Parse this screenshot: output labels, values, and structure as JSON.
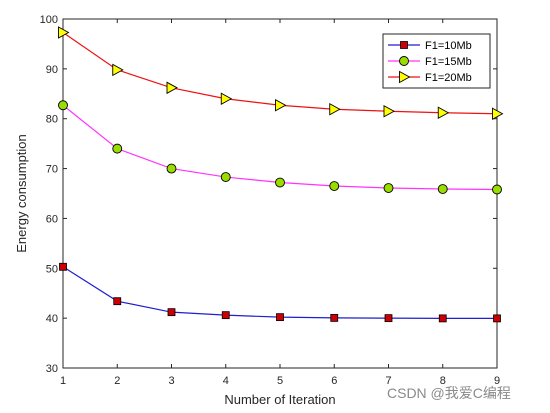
{
  "chart_data": {
    "type": "line",
    "title": "",
    "xlabel": "Number of Iteration",
    "ylabel": "Energy consumption",
    "x": [
      1,
      2,
      3,
      4,
      5,
      6,
      7,
      8,
      9
    ],
    "xlim": [
      1,
      9
    ],
    "ylim": [
      30,
      100
    ],
    "xticks": [
      1,
      2,
      3,
      4,
      5,
      6,
      7,
      8,
      9
    ],
    "yticks": [
      30,
      40,
      50,
      60,
      70,
      80,
      90,
      100
    ],
    "grid": false,
    "legend_position": "top-right",
    "series": [
      {
        "name": "F1=10Mb",
        "values": [
          50.3,
          43.4,
          41.2,
          40.6,
          40.2,
          40.05,
          40.0,
          39.95,
          39.95
        ],
        "line_color": "#1f1fcf",
        "marker": "square",
        "marker_color": "#cc0000"
      },
      {
        "name": "F1=15Mb",
        "values": [
          82.7,
          74.0,
          70.0,
          68.3,
          67.2,
          66.5,
          66.1,
          65.9,
          65.8
        ],
        "line_color": "#ff33ff",
        "marker": "circle",
        "marker_color": "#99dd00"
      },
      {
        "name": "F1=20Mb",
        "values": [
          97.3,
          89.8,
          86.2,
          84.0,
          82.7,
          81.9,
          81.5,
          81.2,
          81.0
        ],
        "line_color": "#ee1111",
        "marker": "triangle-right",
        "marker_color": "#ffff00"
      }
    ]
  },
  "watermark": "CSDN @我爱C编程"
}
